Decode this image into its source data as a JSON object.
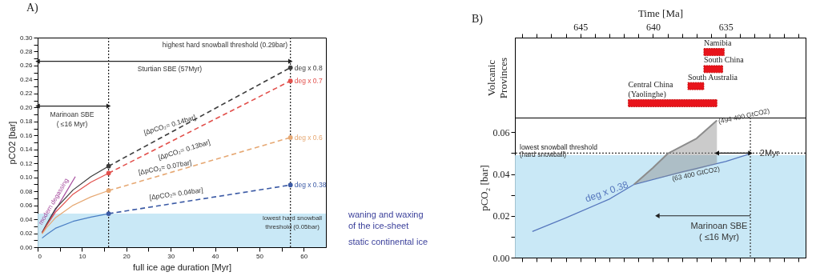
{
  "chart_data": [
    {
      "type": "line",
      "title": "A)",
      "xlabel": "full ice age duration [Myr]",
      "ylabel": "pCO2 [bar]",
      "xlim": [
        0,
        65
      ],
      "xticks": [
        0,
        {
          "value": 5,
          "label": null
        },
        10,
        {
          "value": 15,
          "label": null
        },
        20,
        {
          "value": 25,
          "label": null
        },
        30,
        {
          "value": 35,
          "label": null
        },
        40,
        {
          "value": 45,
          "label": null
        },
        50,
        {
          "value": 55,
          "label": null
        },
        60
      ],
      "ylim": [
        0,
        0.3
      ],
      "yticks": [
        {
          "value": 0,
          "label": "0.00"
        },
        {
          "value": 0.01,
          "label": null
        },
        {
          "value": 0.02,
          "label": "0.02"
        },
        {
          "value": 0.03,
          "label": null
        },
        {
          "value": 0.04,
          "label": "0.04"
        },
        {
          "value": 0.05,
          "label": null
        },
        {
          "value": 0.06,
          "label": "0.06"
        },
        {
          "value": 0.07,
          "label": null
        },
        {
          "value": 0.08,
          "label": "0.08"
        },
        {
          "value": 0.09,
          "label": null
        },
        {
          "value": 0.1,
          "label": "0.10"
        },
        {
          "value": 0.11,
          "label": null
        },
        {
          "value": 0.12,
          "label": "0.12"
        },
        {
          "value": 0.13,
          "label": null
        },
        {
          "value": 0.14,
          "label": "0.14"
        },
        {
          "value": 0.15,
          "label": null
        },
        {
          "value": 0.16,
          "label": "0.16"
        },
        {
          "value": 0.17,
          "label": null
        },
        {
          "value": 0.18,
          "label": "0.18"
        },
        {
          "value": 0.19,
          "label": null
        },
        {
          "value": 0.2,
          "label": "0.20"
        },
        {
          "value": 0.21,
          "label": null
        },
        {
          "value": 0.22,
          "label": "0.22"
        },
        {
          "value": 0.23,
          "label": null
        },
        {
          "value": 0.24,
          "label": "0.24"
        },
        {
          "value": 0.25,
          "label": null
        },
        {
          "value": 0.26,
          "label": "0.26"
        },
        {
          "value": 0.27,
          "label": null
        },
        {
          "value": 0.28,
          "label": "0.28"
        },
        {
          "value": 0.29,
          "label": null
        },
        {
          "value": 0.3,
          "label": "0.30"
        }
      ],
      "series": [
        {
          "name": "modern degassing",
          "color": "#a4479b",
          "x": [
            1,
            8.5
          ],
          "values": [
            0.021,
            0.101
          ]
        },
        {
          "color": "#3c3c3c",
          "x": [
            1,
            2,
            4,
            8,
            12,
            16
          ],
          "values": [
            0.021,
            0.033,
            0.055,
            0.082,
            0.101,
            0.116
          ]
        },
        {
          "name": "deg x 0.8",
          "color": "#3c3c3c",
          "line_style": "dashed",
          "marker": "circle",
          "x": [
            16,
            57
          ],
          "values": [
            0.116,
            0.257
          ]
        },
        {
          "color": "#e2504c",
          "x": [
            1,
            2,
            4,
            8,
            12,
            16
          ],
          "values": [
            0.02,
            0.031,
            0.05,
            0.076,
            0.093,
            0.106
          ]
        },
        {
          "name": "deg x 0.7",
          "color": "#e2504c",
          "line_style": "dashed",
          "marker": "circle",
          "x": [
            16,
            57
          ],
          "values": [
            0.106,
            0.238
          ]
        },
        {
          "color": "#e6a873",
          "x": [
            1,
            2,
            4,
            8,
            12,
            16
          ],
          "values": [
            0.019,
            0.028,
            0.042,
            0.06,
            0.072,
            0.081
          ]
        },
        {
          "name": "deg x 0.6",
          "color": "#e6a873",
          "line_style": "dashed",
          "marker": "circle",
          "x": [
            16,
            57
          ],
          "values": [
            0.081,
            0.157
          ]
        },
        {
          "color": "#4a7ec4",
          "x": [
            1,
            2,
            4,
            8,
            12,
            16
          ],
          "values": [
            0.013,
            0.018,
            0.027,
            0.037,
            0.043,
            0.048
          ]
        },
        {
          "name": "deg x 0.38",
          "color": "#3b5aa5",
          "line_style": "dashed",
          "marker": "circle",
          "x": [
            16,
            57
          ],
          "values": [
            0.048,
            0.089
          ]
        },
        {
          "color": "#222222",
          "marker": "triangle",
          "x": [
            0,
            57
          ],
          "values": [
            0.266,
            0.266
          ]
        },
        {
          "color": "#222222",
          "marker": "triangle",
          "x": [
            0,
            16
          ],
          "values": [
            0.202,
            0.202
          ]
        }
      ],
      "bands": [
        {
          "axis": "y",
          "from": 0,
          "to": 0.048,
          "color": "#bfe4f5"
        }
      ],
      "ref_lines": [
        {
          "axis": "x",
          "value": 16,
          "line_style": "dotted",
          "color": "#222222"
        },
        {
          "axis": "x",
          "value": 57,
          "line_style": "dotted",
          "color": "#222222"
        }
      ],
      "annotations": [
        "highest hard snowball threshold (0.29bar)",
        "Sturtian SBE (57Myr)",
        "Marinoan SBE\n( ≤16 Myr)",
        "[ΔpCO₂= 0.14bar]",
        "[ΔpCO₂= 0.13bar]",
        "[ΔpCO₂= 0.07bar]",
        "[ΔpCO₂= 0.04bar]",
        "lowest hard snowball\nthreshold (0.05bar)",
        "waning and waxing\nof the ice-sheet",
        "static continental ice"
      ]
    },
    {
      "type": "bar",
      "orientation": "horizontal",
      "title": "B)",
      "xlabel": "Time [Ma]",
      "ylabel": "Volcanic\nProvinces",
      "categories": [
        "Namibia",
        "South China",
        "South Australia",
        "Central China\n(Yaolinghe)"
      ],
      "base": [
        636.5,
        636.5,
        637.6,
        641.7
      ],
      "values": [
        -1.4,
        -1.3,
        -1.1,
        -6.1
      ],
      "color": "#e8141b",
      "xlim": [
        649.5,
        629.5
      ],
      "xticks": [
        {
          "value": 649,
          "label": null
        },
        {
          "value": 648,
          "label": null
        },
        {
          "value": 647,
          "label": null
        },
        {
          "value": 646,
          "label": null
        },
        645,
        {
          "value": 644,
          "label": null
        },
        {
          "value": 643,
          "label": null
        },
        {
          "value": 642,
          "label": null
        },
        {
          "value": 641,
          "label": null
        },
        640,
        {
          "value": 639,
          "label": null
        },
        {
          "value": 638,
          "label": null
        },
        {
          "value": 637,
          "label": null
        },
        {
          "value": 636,
          "label": null
        },
        635,
        {
          "value": 634,
          "label": null
        },
        {
          "value": 633,
          "label": null
        },
        {
          "value": 632,
          "label": null
        },
        {
          "value": 631,
          "label": null
        },
        {
          "value": 630,
          "label": null
        }
      ]
    },
    {
      "type": "line",
      "ylabel": "pCO₂ [bar]",
      "tick_labels": "y",
      "xlim": [
        649.5,
        629.5
      ],
      "xticks": [
        {
          "value": 649,
          "label": null
        },
        {
          "value": 648,
          "label": null
        },
        {
          "value": 647,
          "label": null
        },
        {
          "value": 646,
          "label": null
        },
        645,
        {
          "value": 644,
          "label": null
        },
        {
          "value": 643,
          "label": null
        },
        {
          "value": 642,
          "label": null
        },
        {
          "value": 641,
          "label": null
        },
        640,
        {
          "value": 639,
          "label": null
        },
        {
          "value": 638,
          "label": null
        },
        {
          "value": 637,
          "label": null
        },
        {
          "value": 636,
          "label": null
        },
        635,
        {
          "value": 634,
          "label": null
        },
        {
          "value": 633,
          "label": null
        },
        {
          "value": 632,
          "label": null
        },
        {
          "value": 631,
          "label": null
        },
        {
          "value": 630,
          "label": null
        }
      ],
      "ylim": [
        0,
        0.067
      ],
      "yticks": [
        {
          "value": 0,
          "label": "0.00"
        },
        {
          "value": 0.01,
          "label": null
        },
        {
          "value": 0.02,
          "label": "0.02"
        },
        {
          "value": 0.03,
          "label": null
        },
        {
          "value": 0.04,
          "label": "0.04"
        },
        {
          "value": 0.05,
          "label": null
        },
        {
          "value": 0.06,
          "label": "0.06"
        }
      ],
      "series": [
        {
          "name": "deg x 0.38",
          "color": "#5677bd",
          "x": [
            648.3,
            646,
            643,
            641.3,
            638,
            635,
            633.3
          ],
          "values": [
            0.0125,
            0.019,
            0.028,
            0.035,
            0.041,
            0.046,
            0.0497
          ]
        },
        {
          "color": "#8c8c8c",
          "x": [
            641.3,
            640,
            639,
            637,
            635.6
          ],
          "values": [
            0.035,
            0.043,
            0.0497,
            0.057,
            0.0657
          ],
          "lower": [
            0.035,
            0.0375,
            0.039,
            0.042,
            0.045
          ],
          "upper": [
            0.035,
            0.043,
            0.0497,
            0.057,
            0.0657
          ]
        },
        {
          "color": "#111111",
          "marker": "triangle",
          "x": [
            635.6,
            633.3
          ],
          "values": [
            0.05,
            0.05
          ]
        },
        {
          "color": "#222222",
          "marker": "triangle",
          "x": [
            633.3,
            639.7
          ],
          "values": [
            0.02,
            0.02
          ]
        }
      ],
      "bands": [
        {
          "axis": "y",
          "from": 0,
          "to": 0.049,
          "color": "#bfe4f5"
        }
      ],
      "ref_lines": [
        {
          "axis": "y",
          "value": 0.05,
          "label": "lowest snowball threshold\n(hard snowball)",
          "line_style": "dotted",
          "color": "#333333"
        },
        {
          "axis": "x",
          "value": 633.3,
          "line_style": "dotted",
          "color": "#333333"
        }
      ],
      "annotations": [
        "(494 400 GtCO2)",
        "(63 400 GtCO2)",
        "2Myr",
        "Marinoan SBE\n( ≤16 Myr)"
      ]
    }
  ]
}
